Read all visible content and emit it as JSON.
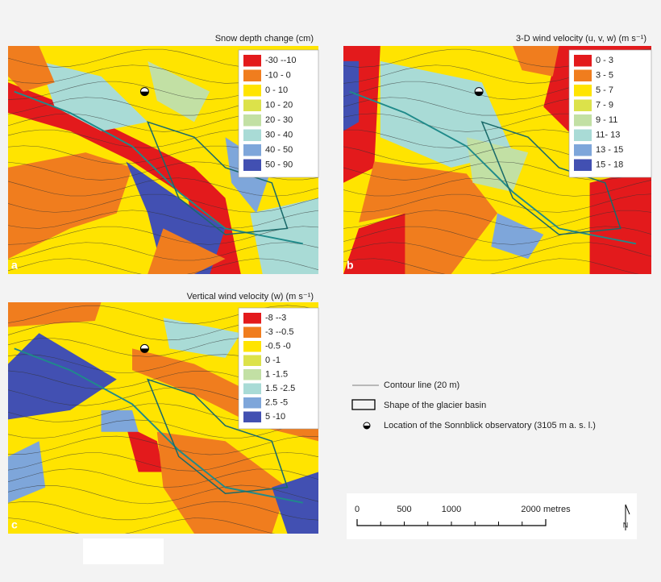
{
  "panels": [
    {
      "label": "a",
      "title": "Snow depth change (cm)",
      "legend": [
        {
          "label": "-30 --10",
          "color": "#e31a1c"
        },
        {
          "label": "-10 - 0",
          "color": "#f07d1e"
        },
        {
          "label": "0 - 10",
          "color": "#ffe400"
        },
        {
          "label": "10 - 20",
          "color": "#dce24a"
        },
        {
          "label": "20 - 30",
          "color": "#c2e0a4"
        },
        {
          "label": "30 - 40",
          "color": "#a9dbd6"
        },
        {
          "label": "40 - 50",
          "color": "#7ea6da"
        },
        {
          "label": "50 - 90",
          "color": "#4250b2"
        }
      ]
    },
    {
      "label": "b",
      "title": "3-D wind velocity (u, v, w) (m s⁻¹)",
      "legend": [
        {
          "label": "0 - 3",
          "color": "#e31a1c"
        },
        {
          "label": "3 - 5",
          "color": "#f07d1e"
        },
        {
          "label": "5 - 7",
          "color": "#ffe400"
        },
        {
          "label": "7 - 9",
          "color": "#dce24a"
        },
        {
          "label": "9 - 11",
          "color": "#c2e0a4"
        },
        {
          "label": "11- 13",
          "color": "#a9dbd6"
        },
        {
          "label": "13 - 15",
          "color": "#7ea6da"
        },
        {
          "label": "15 - 18",
          "color": "#4250b2"
        }
      ]
    },
    {
      "label": "c",
      "title": "Vertical wind velocity (w)  (m s⁻¹)",
      "legend": [
        {
          "label": "-8 --3",
          "color": "#e31a1c"
        },
        {
          "label": "-3 --0.5",
          "color": "#f07d1e"
        },
        {
          "label": "-0.5 -0",
          "color": "#ffe400"
        },
        {
          "label": "0 -1",
          "color": "#dce24a"
        },
        {
          "label": "1 -1.5",
          "color": "#c2e0a4"
        },
        {
          "label": "1.5 -2.5",
          "color": "#a9dbd6"
        },
        {
          "label": "2.5 -5",
          "color": "#7ea6da"
        },
        {
          "label": "5 -10",
          "color": "#4250b2"
        }
      ]
    }
  ],
  "key": {
    "contour": "Contour line (20 m)",
    "basin": "Shape of the glacier basin",
    "observatory": "Location of the Sonnblick observatory (3105 m a. s. l.)"
  },
  "scale": {
    "labels": [
      "0",
      "500",
      "1000",
      "2000 metres"
    ],
    "north": "N"
  }
}
